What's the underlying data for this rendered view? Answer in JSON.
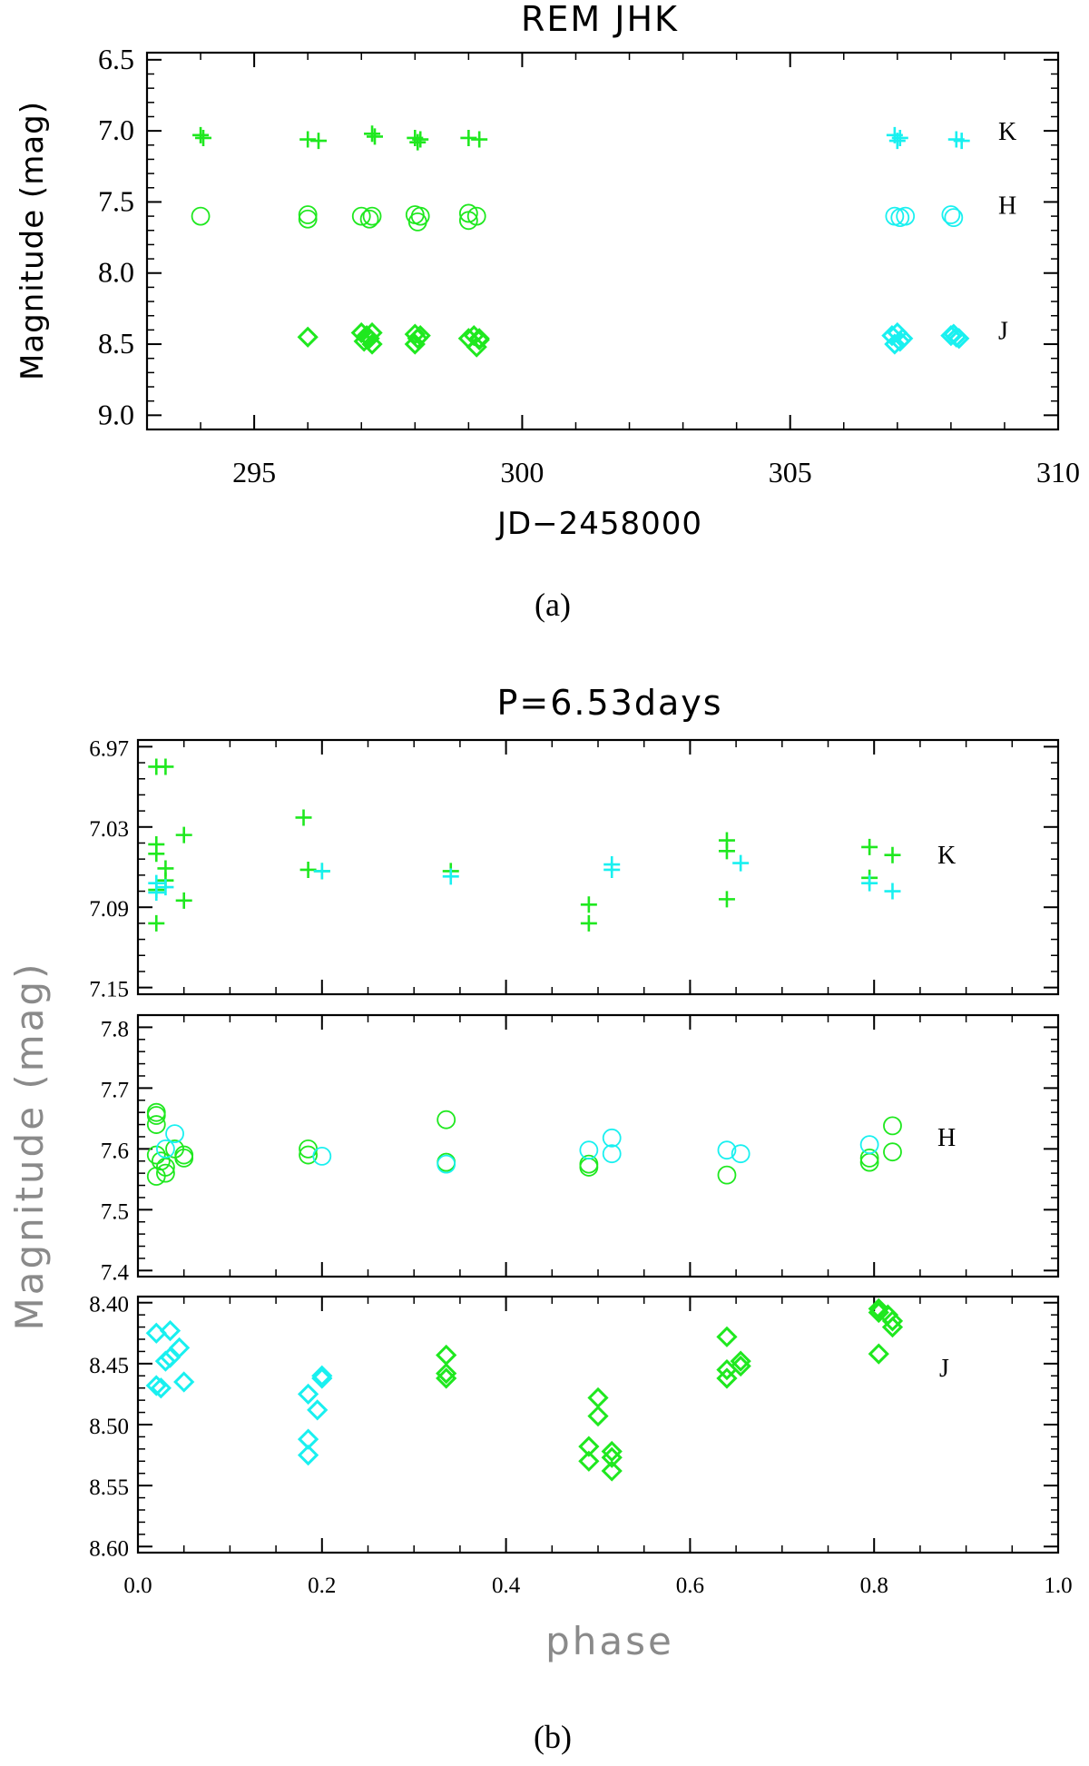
{
  "colors": {
    "green": "#1fe81f",
    "cyan": "#19f0f0",
    "axis": "#000000",
    "label_grey": "#8a8a8a"
  },
  "panel_a": {
    "caption": "(a)"
  },
  "panel_b": {
    "caption": "(b)",
    "ylabel": "Magnitude (mag)",
    "band_labels": {
      "K": "K",
      "H": "H",
      "J": "J"
    }
  },
  "chart_data": [
    {
      "id": "a",
      "type": "scatter",
      "title": "REM JHK",
      "xlabel": "JD−2458000",
      "ylabel": "Magnitude (mag)",
      "xlim": [
        293,
        310
      ],
      "ylim": [
        9.1,
        6.45
      ],
      "y_inverted": true,
      "xticks": [
        295,
        300,
        305,
        310
      ],
      "yticks": [
        6.5,
        7.0,
        7.5,
        8.0,
        8.5,
        9.0
      ],
      "ytick_labels": [
        "6.5",
        "7.0",
        "7.5",
        "8.0",
        "8.5",
        "9.0"
      ],
      "band_labels": [
        {
          "text": "K",
          "y": 7.0
        },
        {
          "text": "H",
          "y": 7.52
        },
        {
          "text": "J",
          "y": 8.4
        }
      ],
      "series": [
        {
          "name": "K",
          "marker": "plus",
          "color": "green",
          "x": [
            294.0,
            294.05,
            296.0,
            296.2,
            297.2,
            297.25,
            298.0,
            298.1,
            298.05,
            299.0,
            299.2
          ],
          "y": [
            7.03,
            7.05,
            7.06,
            7.07,
            7.02,
            7.04,
            7.05,
            7.06,
            7.08,
            7.05,
            7.06
          ]
        },
        {
          "name": "K",
          "marker": "plus",
          "color": "cyan",
          "x": [
            306.95,
            307.05,
            307.0,
            308.1,
            308.2
          ],
          "y": [
            7.03,
            7.05,
            7.07,
            7.06,
            7.07
          ]
        },
        {
          "name": "H",
          "marker": "circle",
          "color": "green",
          "x": [
            294.0,
            296.0,
            296.0,
            297.0,
            297.2,
            297.15,
            298.0,
            298.05,
            298.1,
            299.0,
            299.0,
            299.15
          ],
          "y": [
            7.6,
            7.59,
            7.62,
            7.6,
            7.6,
            7.62,
            7.59,
            7.64,
            7.6,
            7.58,
            7.63,
            7.6
          ]
        },
        {
          "name": "H",
          "marker": "circle",
          "color": "cyan",
          "x": [
            306.95,
            307.05,
            307.15,
            308.0,
            308.05
          ],
          "y": [
            7.6,
            7.61,
            7.6,
            7.59,
            7.61
          ]
        },
        {
          "name": "J",
          "marker": "diamond",
          "color": "green",
          "x": [
            296.0,
            297.0,
            297.1,
            297.2,
            297.15,
            297.05,
            297.2,
            298.0,
            298.05,
            298.0,
            298.1,
            299.0,
            299.1,
            299.2,
            299.15,
            299.2
          ],
          "y": [
            8.45,
            8.42,
            8.44,
            8.42,
            8.46,
            8.48,
            8.5,
            8.43,
            8.46,
            8.5,
            8.44,
            8.46,
            8.44,
            8.47,
            8.52,
            8.46
          ]
        },
        {
          "name": "J",
          "marker": "diamond",
          "color": "cyan",
          "x": [
            306.9,
            307.0,
            307.1,
            306.95,
            307.05,
            308.0,
            308.1,
            308.05,
            308.15
          ],
          "y": [
            8.44,
            8.42,
            8.46,
            8.5,
            8.48,
            8.44,
            8.45,
            8.43,
            8.46
          ]
        }
      ]
    },
    {
      "id": "b-K",
      "type": "scatter",
      "title": "P=6.53days",
      "xlim": [
        0.0,
        1.0
      ],
      "ylim": [
        7.155,
        6.965
      ],
      "y_inverted": true,
      "yticks": [
        6.97,
        7.03,
        7.09,
        7.15
      ],
      "ytick_labels": [
        "6.97",
        "7.03",
        "7.09",
        "7.15"
      ],
      "series": [
        {
          "name": "K",
          "marker": "plus",
          "color": "green",
          "x": [
            0.02,
            0.03,
            0.02,
            0.02,
            0.03,
            0.02,
            0.05,
            0.03,
            0.05,
            0.02,
            0.18,
            0.185,
            0.2,
            0.34,
            0.49,
            0.49,
            0.64,
            0.64,
            0.64,
            0.795,
            0.795,
            0.82
          ],
          "y": [
            6.985,
            6.985,
            7.043,
            7.05,
            7.061,
            7.077,
            7.036,
            7.07,
            7.085,
            7.102,
            7.023,
            7.062,
            7.063,
            7.063,
            7.088,
            7.102,
            7.04,
            7.048,
            7.084,
            7.045,
            7.068,
            7.051
          ]
        },
        {
          "name": "K",
          "marker": "plus",
          "color": "cyan",
          "x": [
            0.02,
            0.03,
            0.02,
            0.2,
            0.34,
            0.515,
            0.515,
            0.655,
            0.795,
            0.82
          ],
          "y": [
            7.072,
            7.075,
            7.079,
            7.063,
            7.067,
            7.058,
            7.062,
            7.057,
            7.072,
            7.078
          ]
        }
      ]
    },
    {
      "id": "b-H",
      "type": "scatter",
      "xlim": [
        0.0,
        1.0
      ],
      "ylim": [
        7.39,
        7.82
      ],
      "yticks": [
        7.4,
        7.5,
        7.6,
        7.7,
        7.8
      ],
      "ytick_labels": [
        "7.4",
        "7.5",
        "7.6",
        "7.7",
        "7.8"
      ],
      "series": [
        {
          "name": "H",
          "marker": "circle",
          "color": "green",
          "x": [
            0.02,
            0.02,
            0.02,
            0.02,
            0.025,
            0.03,
            0.04,
            0.05,
            0.05,
            0.02,
            0.03,
            0.185,
            0.185,
            0.335,
            0.335,
            0.49,
            0.49,
            0.64,
            0.795,
            0.795,
            0.82,
            0.82
          ],
          "y": [
            7.66,
            7.655,
            7.64,
            7.59,
            7.58,
            7.57,
            7.6,
            7.59,
            7.585,
            7.555,
            7.56,
            7.6,
            7.59,
            7.648,
            7.578,
            7.575,
            7.57,
            7.557,
            7.585,
            7.578,
            7.638,
            7.595
          ]
        },
        {
          "name": "H",
          "marker": "circle",
          "color": "cyan",
          "x": [
            0.04,
            0.03,
            0.2,
            0.335,
            0.49,
            0.515,
            0.515,
            0.64,
            0.655,
            0.795
          ],
          "y": [
            7.625,
            7.6,
            7.588,
            7.575,
            7.598,
            7.618,
            7.592,
            7.598,
            7.592,
            7.607
          ]
        }
      ]
    },
    {
      "id": "b-J",
      "type": "scatter",
      "xlim": [
        0.0,
        1.0
      ],
      "ylim": [
        8.605,
        8.395
      ],
      "y_inverted": true,
      "xticks": [
        0.0,
        0.2,
        0.4,
        0.6,
        0.8,
        1.0
      ],
      "xtick_labels": [
        "0.0",
        "0.2",
        "0.4",
        "0.6",
        "0.8",
        "1.0"
      ],
      "xlabel": "phase",
      "yticks": [
        8.4,
        8.45,
        8.5,
        8.55,
        8.6
      ],
      "ytick_labels": [
        "8.40",
        "8.45",
        "8.50",
        "8.55",
        "8.60"
      ],
      "series": [
        {
          "name": "J",
          "marker": "diamond",
          "color": "cyan",
          "x": [
            0.02,
            0.035,
            0.045,
            0.035,
            0.03,
            0.05,
            0.02,
            0.025,
            0.185,
            0.2,
            0.2,
            0.185,
            0.185,
            0.195
          ],
          "y": [
            8.425,
            8.423,
            8.437,
            8.445,
            8.448,
            8.465,
            8.468,
            8.47,
            8.475,
            8.462,
            8.46,
            8.512,
            8.525,
            8.488
          ]
        },
        {
          "name": "J",
          "marker": "diamond",
          "color": "green",
          "x": [
            0.335,
            0.335,
            0.335,
            0.49,
            0.49,
            0.5,
            0.5,
            0.515,
            0.515,
            0.515,
            0.64,
            0.64,
            0.64,
            0.655,
            0.655,
            0.805,
            0.805,
            0.815,
            0.82,
            0.82,
            0.805
          ],
          "y": [
            8.443,
            8.458,
            8.462,
            8.518,
            8.53,
            8.478,
            8.493,
            8.522,
            8.527,
            8.538,
            8.428,
            8.455,
            8.462,
            8.448,
            8.452,
            8.405,
            8.408,
            8.41,
            8.415,
            8.42,
            8.442
          ]
        }
      ]
    }
  ]
}
